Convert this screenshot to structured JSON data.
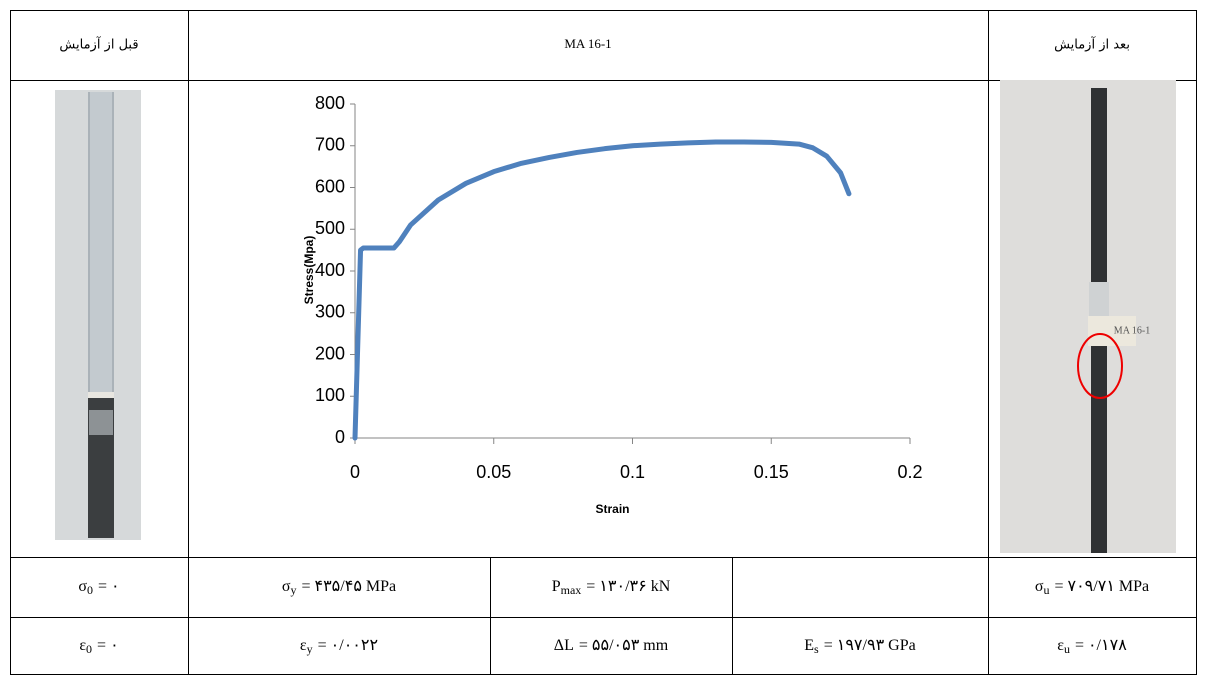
{
  "header": {
    "before": "قبل از آزمایش",
    "specimen": "MA 16-1",
    "after": "بعد از آزمایش"
  },
  "photo_label": "MA 16-1",
  "chart_data": {
    "type": "line",
    "y_label": "Stress(Mpa)",
    "x_label": "Strain",
    "x": [
      0,
      0.002,
      0.003,
      0.014,
      0.016,
      0.02,
      0.03,
      0.04,
      0.05,
      0.06,
      0.07,
      0.08,
      0.09,
      0.1,
      0.11,
      0.12,
      0.13,
      0.14,
      0.15,
      0.16,
      0.165,
      0.17,
      0.175,
      0.178
    ],
    "series": [
      {
        "color": "#4f81bd",
        "values": [
          0,
          450,
          455,
          455,
          470,
          510,
          570,
          610,
          638,
          658,
          672,
          684,
          693,
          700,
          704,
          707,
          709,
          709,
          708,
          704,
          695,
          675,
          635,
          585
        ]
      }
    ],
    "xlim": [
      0,
      0.2
    ],
    "xticks": [
      0,
      0.05,
      0.1,
      0.15,
      0.2
    ],
    "ylim": [
      0,
      800
    ],
    "yticks": [
      0,
      100,
      200,
      300,
      400,
      500,
      600,
      700,
      800
    ]
  },
  "table": {
    "rows": [
      [
        {
          "symbol": "σ",
          "sub": "0",
          "value": "= ۰"
        },
        {
          "symbol": "σ",
          "sub": "y",
          "value": "= ۴۳۵/۴۵ MPa"
        },
        {
          "symbol": "P",
          "sub": "max",
          "value": "= ۱۳۰/۳۶ kN"
        },
        {
          "symbol": "σ",
          "sub": "u",
          "value": "= ۷۰۹/۷۱ MPa"
        }
      ],
      [
        {
          "symbol": "ε",
          "sub": "0",
          "value": "= ۰"
        },
        {
          "symbol": "ε",
          "sub": "y",
          "value": "= ۰/۰۰۲۲"
        },
        {
          "symbol": "ΔL",
          "value": "= ۵۵/۰۵۳ mm"
        },
        {
          "symbol": "E",
          "sub": "s",
          "value": "= ۱۹۷/۹۳ GPa"
        },
        {
          "symbol": "ε",
          "sub": "u",
          "value": "= ۰/۱۷۸"
        }
      ]
    ]
  }
}
